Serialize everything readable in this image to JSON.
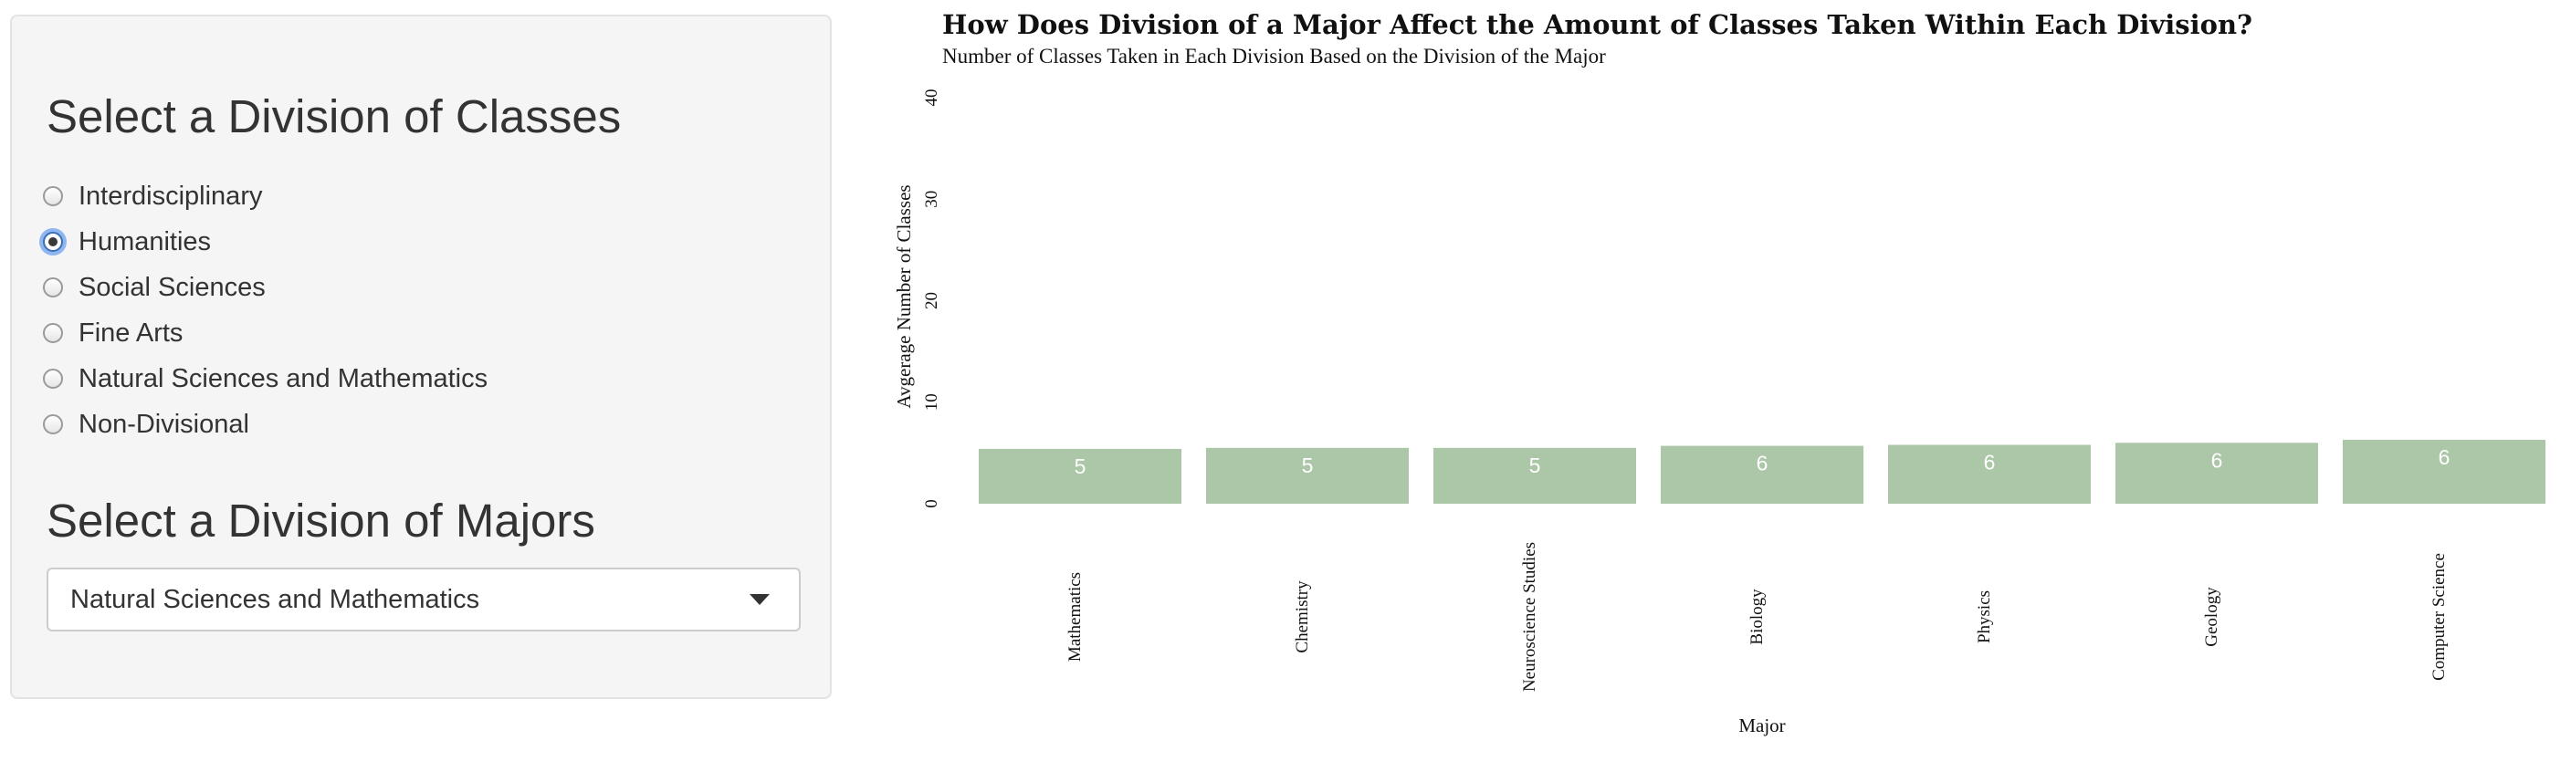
{
  "sidebar": {
    "class_division_title": "Select a Division of Classes",
    "class_division_options": [
      {
        "label": "Interdisciplinary",
        "selected": false
      },
      {
        "label": "Humanities",
        "selected": true
      },
      {
        "label": "Social Sciences",
        "selected": false
      },
      {
        "label": "Fine Arts",
        "selected": false
      },
      {
        "label": "Natural Sciences and Mathematics",
        "selected": false
      },
      {
        "label": "Non-Divisional",
        "selected": false
      }
    ],
    "major_division_title": "Select a Division of Majors",
    "major_division_selected": "Natural Sciences and Mathematics"
  },
  "colors": {
    "bar": "#acc6a8",
    "bar_label": "#ffffff",
    "sidebar_bg": "#f5f5f5",
    "selected_radio_ring": "#8fb6f0"
  },
  "chart_data": {
    "type": "bar",
    "title": "How Does Division of a Major Affect the Amount of Classes Taken Within Each Division?",
    "subtitle": "Number of Classes Taken in Each Division Based on the Division of the Major",
    "xlabel": "Major",
    "ylabel": "Avgerage Number of Classes",
    "categories": [
      "Mathematics",
      "Chemistry",
      "Neuroscience Studies",
      "Biology",
      "Physics",
      "Geology",
      "Computer Science"
    ],
    "values": [
      5.4,
      5.5,
      5.5,
      5.7,
      5.8,
      6.0,
      6.3
    ],
    "data_labels": [
      "5",
      "5",
      "5",
      "6",
      "6",
      "6",
      "6"
    ],
    "yticks": [
      0,
      10,
      20,
      30,
      40
    ],
    "ylim": [
      0,
      40
    ],
    "grid": false,
    "legend": "none"
  }
}
